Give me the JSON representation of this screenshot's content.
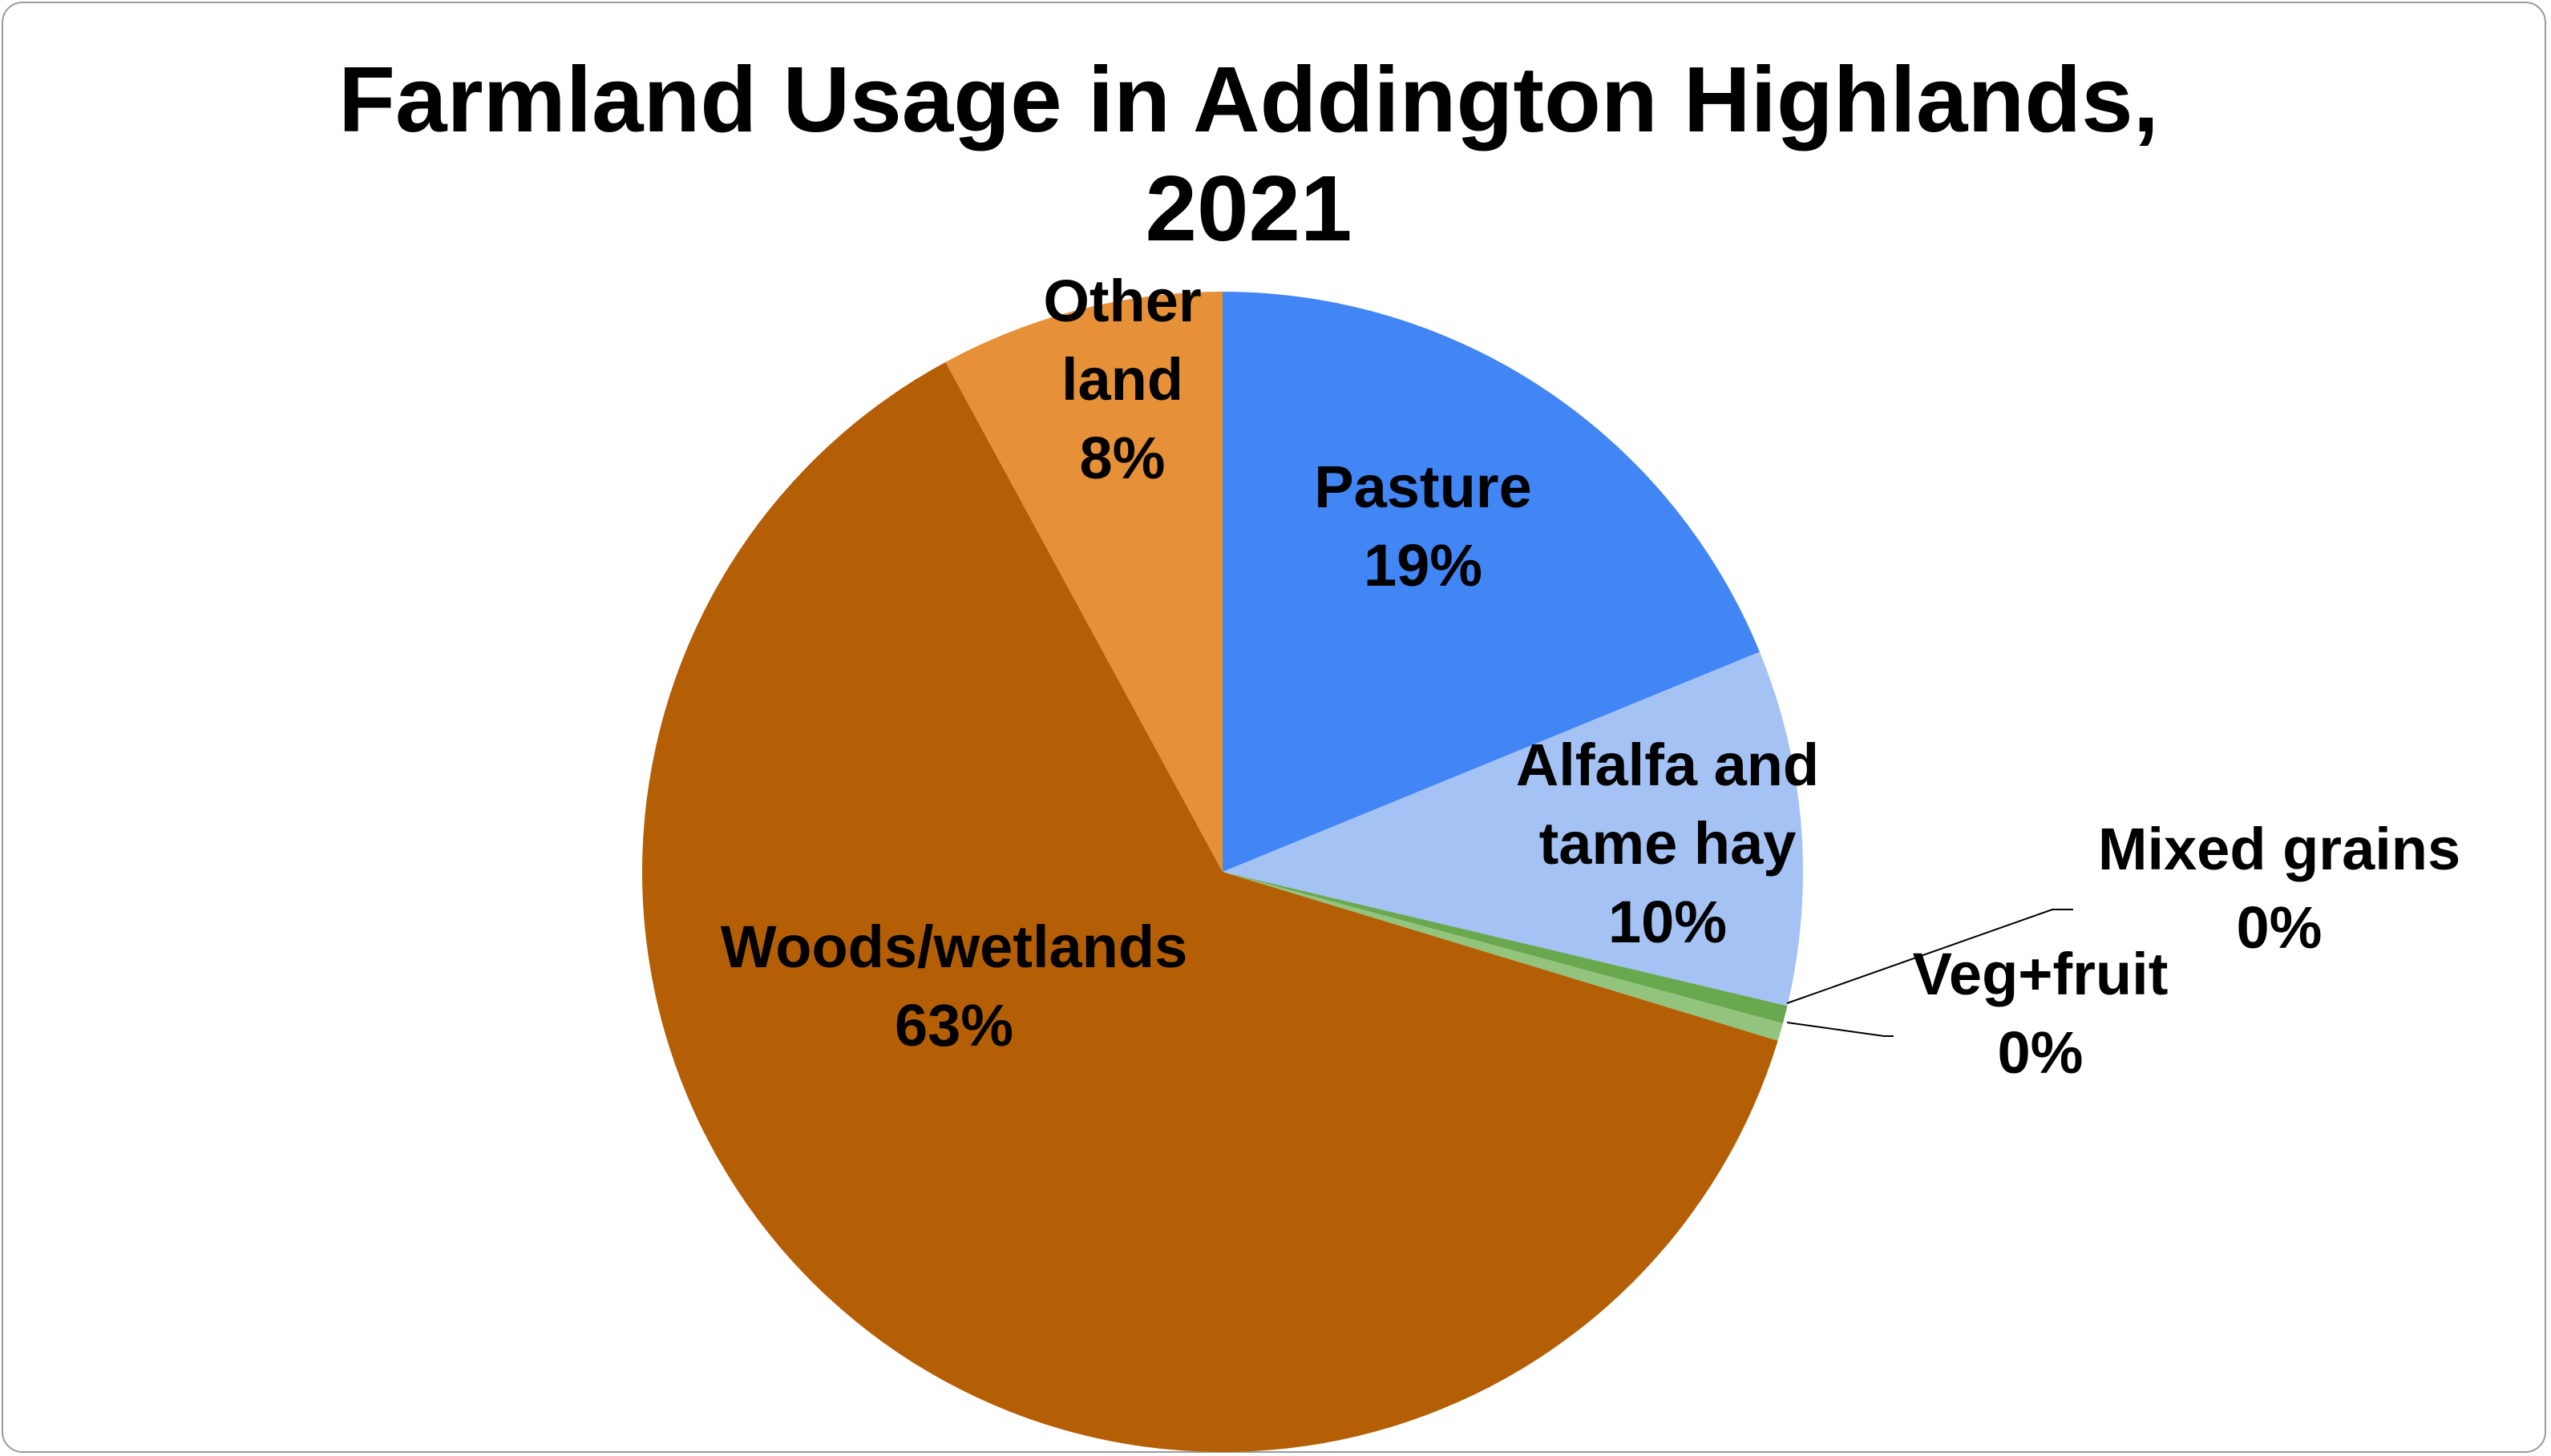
{
  "chart_data": {
    "type": "pie",
    "title_lines": [
      "Farmland Usage in Addington Highlands,",
      "2021"
    ],
    "start_angle_deg": 0,
    "direction": "clockwise",
    "slices": [
      {
        "name": "Pasture",
        "value": 19,
        "label_lines": [
          "Pasture"
        ],
        "pct_label": "19%",
        "color": "#4285f4"
      },
      {
        "name": "Alfalfa and tame hay",
        "value": 10,
        "label_lines": [
          "Alfalfa and",
          "tame hay"
        ],
        "pct_label": "10%",
        "color": "#a4c2f4"
      },
      {
        "name": "Mixed grains",
        "value": 0.5,
        "label_lines": [
          "Mixed grains"
        ],
        "pct_label": "0%",
        "color": "#6aa84f"
      },
      {
        "name": "Veg+fruit",
        "value": 0.5,
        "label_lines": [
          "Veg+fruit"
        ],
        "pct_label": "0%",
        "color": "#93c47d"
      },
      {
        "name": "Woods/wetlands",
        "value": 63,
        "label_lines": [
          "Woods/wetlands"
        ],
        "pct_label": "63%",
        "color": "#b45f06"
      },
      {
        "name": "Other land",
        "value": 8,
        "label_lines": [
          "Other",
          "land"
        ],
        "pct_label": "8%",
        "color": "#e69138"
      }
    ]
  }
}
